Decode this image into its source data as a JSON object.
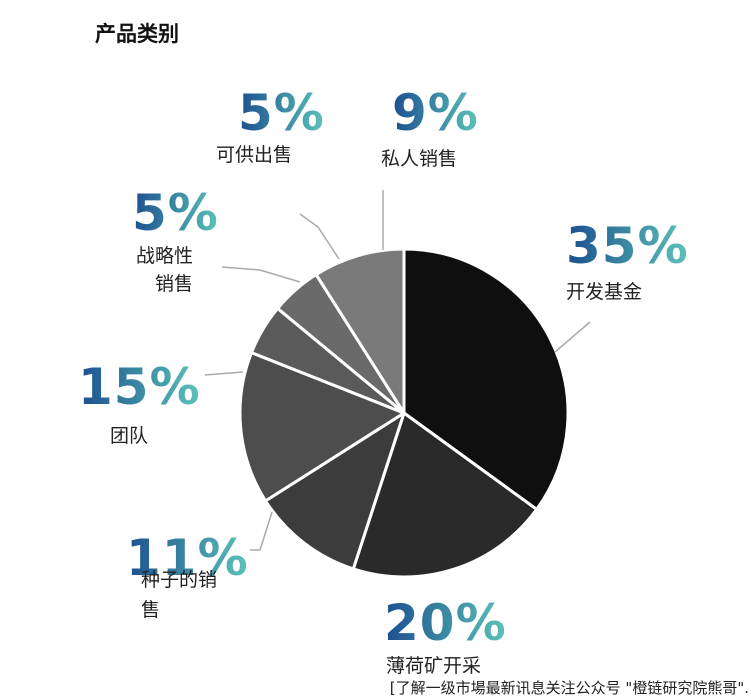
{
  "title": "产品类别",
  "footer": "[了解一级市場最新讯息关注公众号 \"橙链研究院熊哥\".",
  "colors": {
    "pct_gradient_start": "#1b4f8f",
    "pct_gradient_end": "#5cc2b8",
    "leader": "#aaaaaa",
    "separator": "#ffffff"
  },
  "chart_data": {
    "type": "pie",
    "title": "产品类别",
    "slices": [
      {
        "name": "开发基金",
        "pct_label": "35%",
        "value": 35,
        "color": "#0f0f0f"
      },
      {
        "name": "薄荷矿开采",
        "pct_label": "20%",
        "value": 20,
        "color": "#2a2a2a"
      },
      {
        "name": "种子的销售",
        "pct_label": "11%",
        "value": 11,
        "color": "#3c3c3c"
      },
      {
        "name": "团队",
        "pct_label": "15%",
        "value": 15,
        "color": "#4d4d4d"
      },
      {
        "name": "战略性销售",
        "pct_label": "5%",
        "value": 5,
        "color": "#5a5a5a"
      },
      {
        "name": "可供出售",
        "pct_label": "5%",
        "value": 5,
        "color": "#6a6a6a"
      },
      {
        "name": "私人销售",
        "pct_label": "9%",
        "value": 9,
        "color": "#7a7a7a"
      }
    ]
  }
}
